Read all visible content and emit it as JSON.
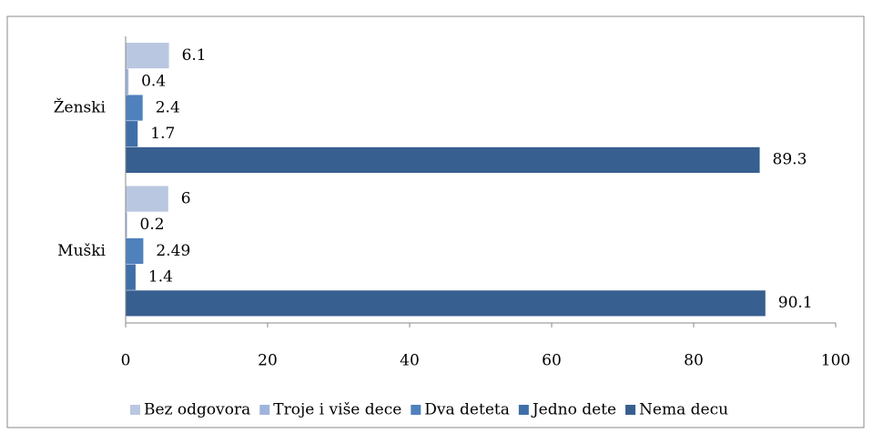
{
  "chart_data": {
    "type": "barh",
    "categories": [
      "Ženski",
      "Muški"
    ],
    "series": [
      {
        "name": "Bez odgovora",
        "color": "#b9c7e0",
        "values": [
          6.1,
          6
        ]
      },
      {
        "name": "Troje i više dece",
        "color": "#9fb4dc",
        "values": [
          0.4,
          0.2
        ]
      },
      {
        "name": "Dva deteta",
        "color": "#4f81bd",
        "values": [
          2.4,
          2.49
        ]
      },
      {
        "name": "Jedno dete",
        "color": "#3f6fa8",
        "values": [
          1.7,
          1.4
        ]
      },
      {
        "name": "Nema decu",
        "color": "#375f8f",
        "values": [
          89.3,
          90.1
        ]
      }
    ],
    "xlim": [
      0,
      100
    ],
    "xticks": [
      0,
      20,
      40,
      60,
      80,
      100
    ],
    "legend": "bottom"
  }
}
